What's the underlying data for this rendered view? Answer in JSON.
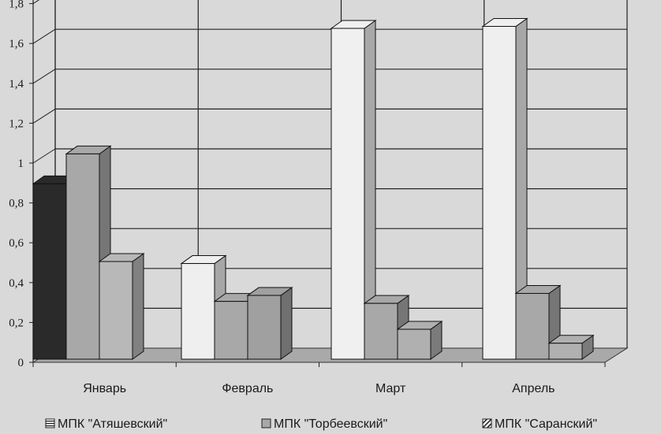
{
  "chart_data": {
    "type": "bar",
    "categories": [
      "Январь",
      "Февраль",
      "Март",
      "Апрель"
    ],
    "series": [
      {
        "name": "МПК \"Атяшевский\"",
        "values": [
          0.88,
          0.48,
          1.66,
          1.67
        ]
      },
      {
        "name": "МПК \"Торбеевский\"",
        "values": [
          1.03,
          0.29,
          0.28,
          0.33
        ]
      },
      {
        "name": "МПК \"Саранский\"",
        "values": [
          0.49,
          0.32,
          0.15,
          0.08
        ]
      }
    ],
    "bar_colors": [
      [
        "#2a2a2a",
        "#efefef",
        "#f0f0f0",
        "#efefef"
      ],
      [
        "#a8a8a8",
        "#a8a8a8",
        "#a8a8a8",
        "#a8a8a8"
      ],
      [
        "#b8b8b8",
        "#a0a0a0",
        "#b0b0b0",
        "#b0b0b0"
      ]
    ],
    "yticks": [
      "0",
      "0,2",
      "0,4",
      "0,6",
      "0,8",
      "1",
      "1,2",
      "1,4",
      "1,6",
      "1,8"
    ],
    "ylim": [
      0,
      2
    ],
    "grid": true,
    "legend_position": "bottom",
    "legend_swatch_styles": [
      "horizontal-lines",
      "solid-gray",
      "diagonal-hatch"
    ]
  }
}
